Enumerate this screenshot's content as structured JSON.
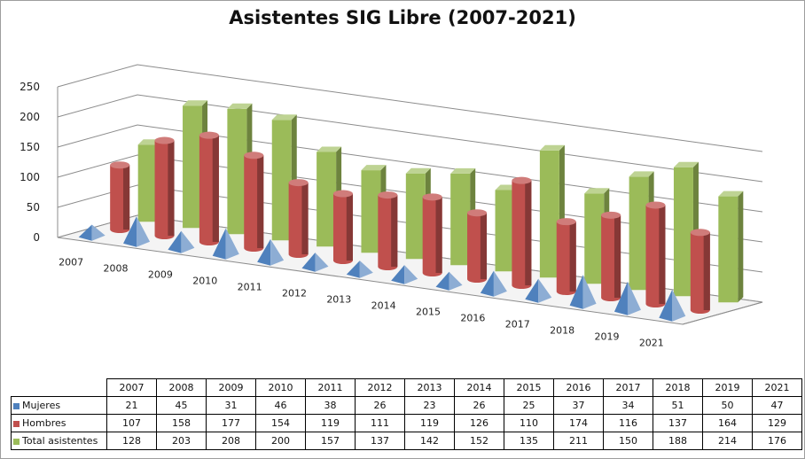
{
  "chart_data": {
    "type": "bar",
    "title": "Asistentes SIG  Libre (2007-2021)",
    "categories": [
      "2007",
      "2008",
      "2009",
      "2010",
      "2011",
      "2012",
      "2013",
      "2014",
      "2015",
      "2016",
      "2017",
      "2018",
      "2019",
      "2021"
    ],
    "ylim": [
      0,
      250
    ],
    "yticks": [
      "0",
      "50",
      "100",
      "150",
      "200",
      "250"
    ],
    "series": [
      {
        "name": "Mujeres",
        "color": "#4f81bd",
        "shape": "pyramid",
        "values": [
          21,
          45,
          31,
          46,
          38,
          26,
          23,
          26,
          25,
          37,
          34,
          51,
          50,
          47
        ]
      },
      {
        "name": "Hombres",
        "color": "#c0504d",
        "shape": "cylinder",
        "values": [
          107,
          158,
          177,
          154,
          119,
          111,
          119,
          126,
          110,
          174,
          116,
          137,
          164,
          129
        ]
      },
      {
        "name": "Total asistentes",
        "color": "#9bbb59",
        "shape": "box",
        "values": [
          128,
          203,
          208,
          200,
          157,
          137,
          142,
          152,
          135,
          211,
          150,
          188,
          214,
          176
        ]
      }
    ],
    "grid": true,
    "projection": "3d"
  }
}
